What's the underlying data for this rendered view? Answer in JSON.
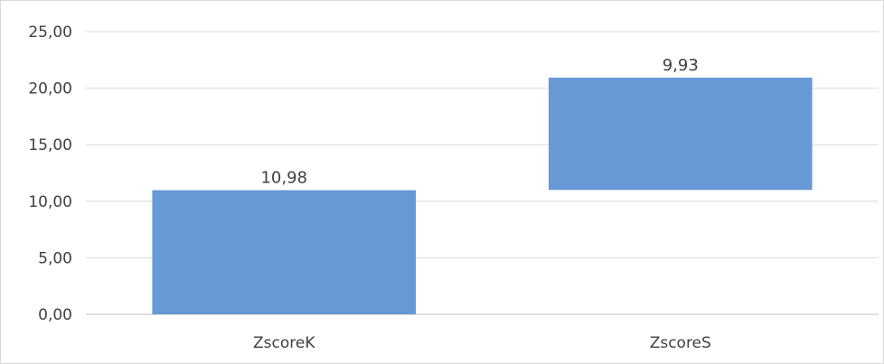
{
  "chart_data": {
    "type": "bar",
    "variant": "waterfall",
    "categories": [
      "ZscoreK",
      "ZscoreS"
    ],
    "values": [
      10.98,
      9.93
    ],
    "bar_bases": [
      0,
      11.0
    ],
    "data_labels": [
      "10,98",
      "9,93"
    ],
    "ylim": [
      0,
      25
    ],
    "y_ticks": [
      0,
      5,
      10,
      15,
      20,
      25
    ],
    "y_tick_labels": [
      "0,00",
      "5,00",
      "10,00",
      "15,00",
      "20,00",
      "25,00"
    ],
    "title": "",
    "xlabel": "",
    "ylabel": "",
    "grid": true,
    "legend": "none",
    "colors": {
      "bar": "#6699d6",
      "grid": "#d9d9d9",
      "text": "#404040",
      "axis": "#bfbfbf"
    }
  }
}
